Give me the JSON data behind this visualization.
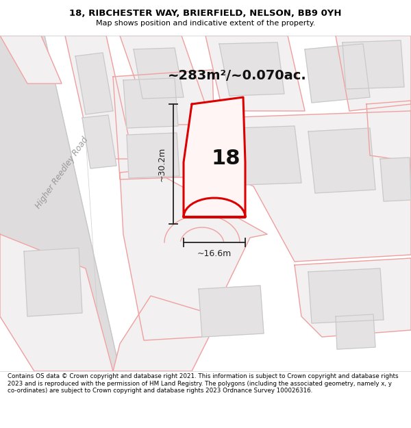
{
  "title_line1": "18, RIBCHESTER WAY, BRIERFIELD, NELSON, BB9 0YH",
  "title_line2": "Map shows position and indicative extent of the property.",
  "area_text": "~283m²/~0.070ac.",
  "label_number": "18",
  "dim_height": "~30.2m",
  "dim_width": "~16.6m",
  "road_label": "Higher Reedley Road",
  "footer_text": "Contains OS data © Crown copyright and database right 2021. This information is subject to Crown copyright and database rights 2023 and is reproduced with the permission of HM Land Registry. The polygons (including the associated geometry, namely x, y co-ordinates) are subject to Crown copyright and database rights 2023 Ordnance Survey 100026316.",
  "bg_color": "#f8f8f8",
  "map_bg": "#f2f0f0",
  "highlight_color": "#dd0000",
  "plot_outline_color": "#f0a0a0",
  "building_fill": "#e4e2e2",
  "title_bg": "#ffffff",
  "footer_bg": "#ffffff",
  "road_fill": "#d8d6d6",
  "dim_line_color": "#222222",
  "text_color": "#111111",
  "road_text_color": "#999999"
}
